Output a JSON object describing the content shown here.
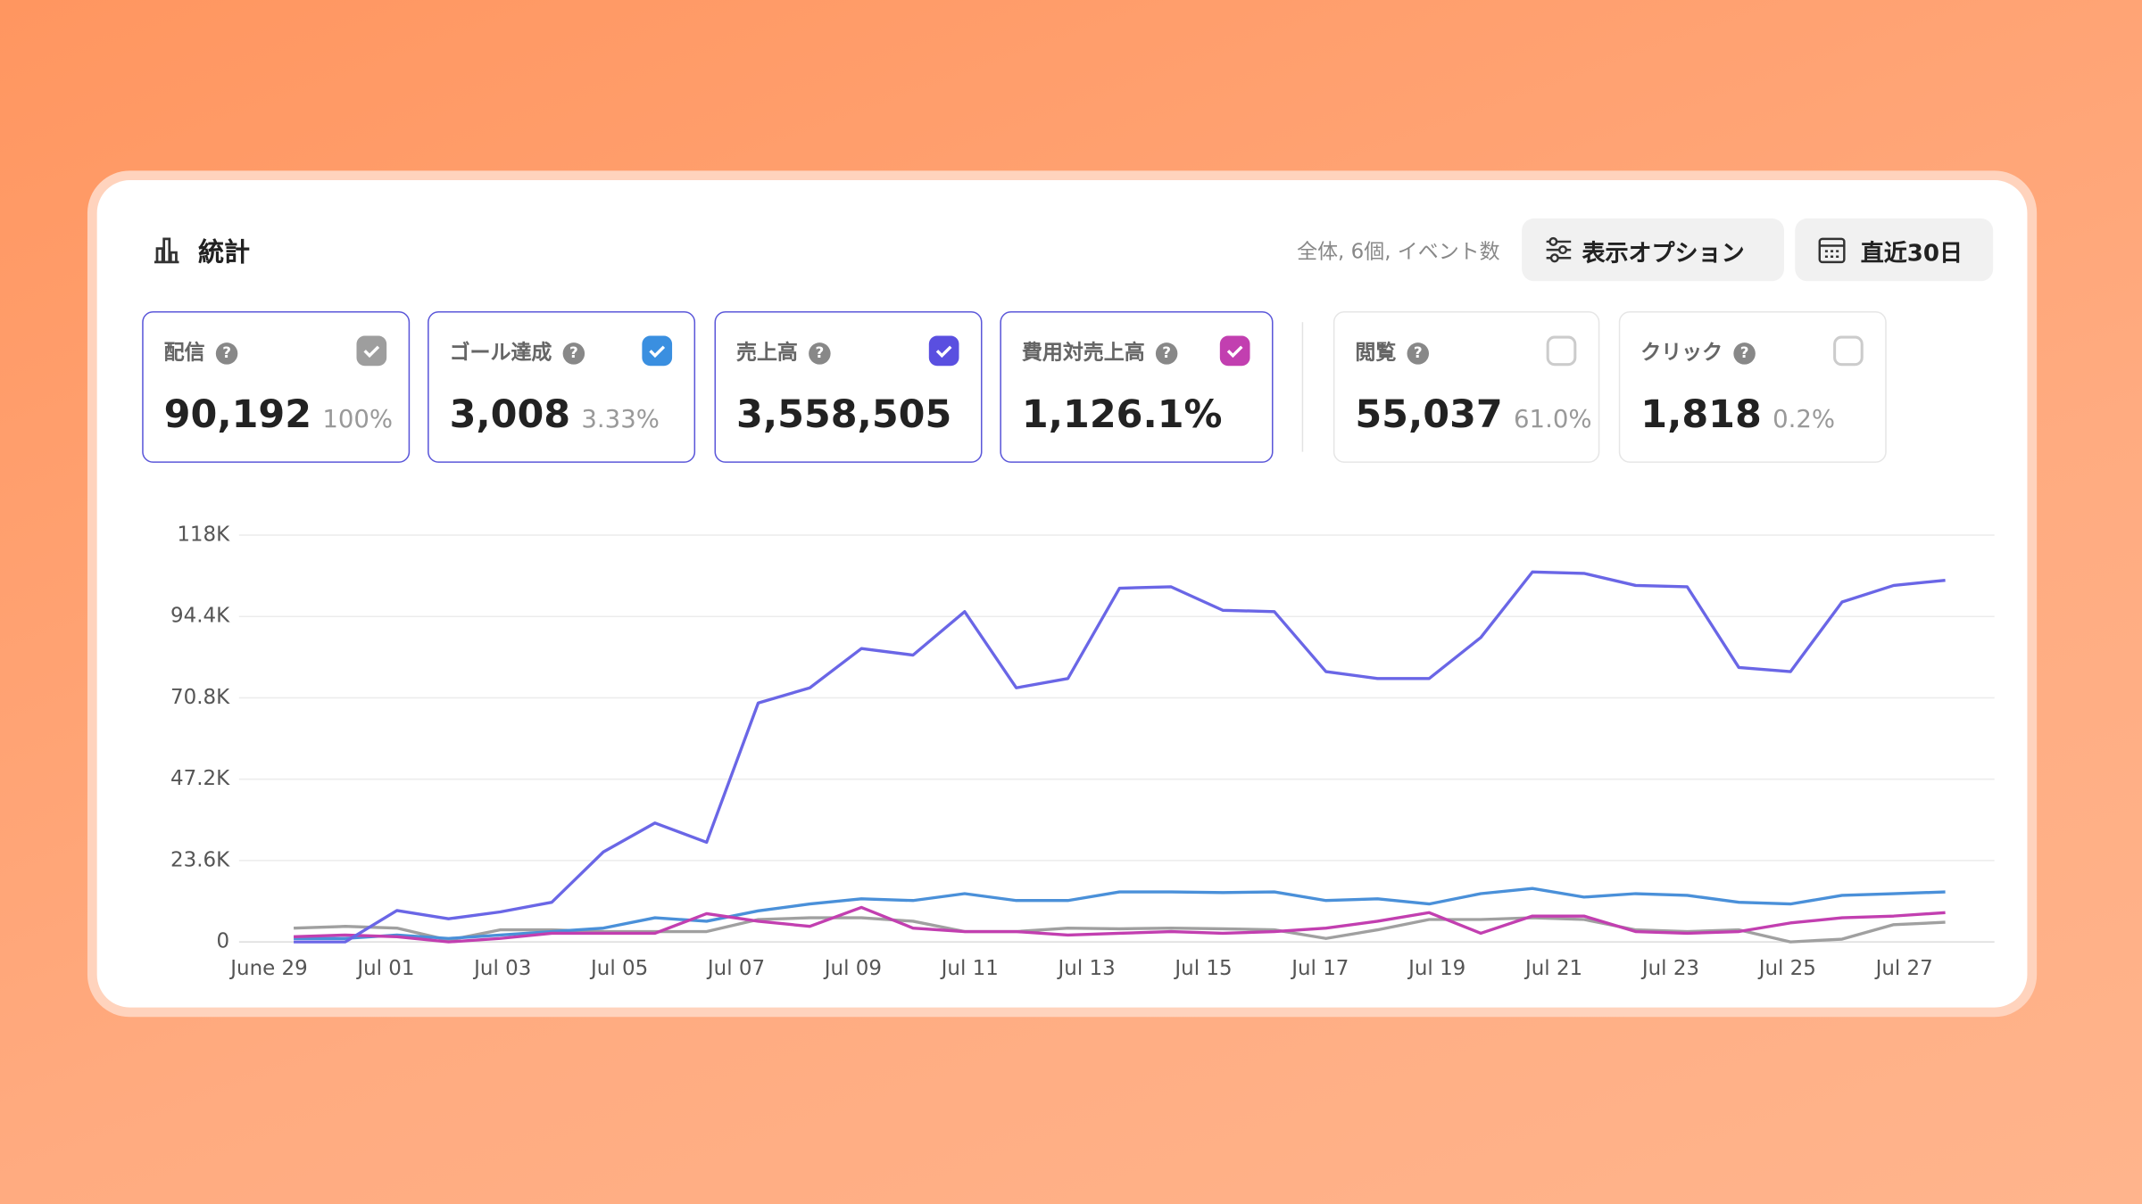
{
  "header": {
    "title": "統計",
    "meta": "全体, 6個, イベント数",
    "options_button": "表示オプション",
    "range_button": "直近30日"
  },
  "cards": [
    {
      "title": "配信",
      "value": "90,192",
      "percent": "100%",
      "selected": true,
      "checked": true,
      "color": "#9e9e9e"
    },
    {
      "title": "ゴール達成",
      "value": "3,008",
      "percent": "3.33%",
      "selected": true,
      "checked": true,
      "color": "#3a8fe0"
    },
    {
      "title": "売上高",
      "value": "3,558,505",
      "selected": true,
      "checked": true,
      "color": "#5a4fe0"
    },
    {
      "title": "費用対売上高",
      "value": "1,126.1%",
      "selected": true,
      "checked": true,
      "color": "#c23fb0"
    },
    {
      "title": "閲覧",
      "value": "55,037",
      "percent": "61.0%",
      "selected": false,
      "checked": false,
      "color": "#cccccc"
    },
    {
      "title": "クリック",
      "value": "1,818",
      "percent": "0.2%",
      "selected": false,
      "checked": false,
      "color": "#cccccc"
    }
  ],
  "chart_data": {
    "type": "line",
    "x_labels": [
      "June 29",
      "Jul 01",
      "Jul 03",
      "Jul 05",
      "Jul 07",
      "Jul 09",
      "Jul 11",
      "Jul 13",
      "Jul 15",
      "Jul 17",
      "Jul 19",
      "Jul 21",
      "Jul 23",
      "Jul 25",
      "Jul 27"
    ],
    "ylim": [
      0,
      118000
    ],
    "yticks": [
      0,
      {
        "value": 23600,
        "label": "23.6K"
      },
      {
        "value": 47200,
        "label": "47.2K"
      },
      {
        "value": 70800,
        "label": "70.8K"
      },
      {
        "value": 94400,
        "label": "94.4K"
      },
      {
        "value": 118000,
        "label": "118K"
      }
    ],
    "grid": true,
    "series": [
      {
        "color": "#a0a0a0",
        "values": [
          4000,
          4500,
          4000,
          500,
          3500,
          3500,
          3000,
          3000,
          3000,
          6500,
          7000,
          7000,
          6000,
          3000,
          3000,
          4000,
          3800,
          4000,
          3800,
          3500,
          1000,
          3500,
          6500,
          6500,
          7000,
          6500,
          3500,
          3000,
          3500,
          0,
          800,
          5000,
          5700
        ]
      },
      {
        "color": "#4a90d9",
        "values": [
          1000,
          1000,
          2000,
          1000,
          2000,
          3000,
          4000,
          7000,
          6000,
          9000,
          11000,
          12500,
          12000,
          14000,
          12000,
          12000,
          14500,
          14500,
          14300,
          14500,
          12000,
          12500,
          11000,
          14000,
          15500,
          13000,
          14000,
          13500,
          11500,
          11000,
          13500,
          14000,
          14500
        ]
      },
      {
        "color": "#c23fb0",
        "values": [
          1500,
          2000,
          1500,
          0,
          1000,
          2500,
          2500,
          2500,
          8200,
          6000,
          4500,
          10000,
          4000,
          3000,
          3000,
          2000,
          2500,
          3000,
          2500,
          3000,
          4000,
          6000,
          8500,
          2500,
          7500,
          7500,
          3000,
          2500,
          3000,
          5500,
          7000,
          7500,
          8500
        ]
      },
      {
        "color": "#6a66e6",
        "values": [
          0,
          0,
          9100,
          6700,
          8700,
          11500,
          26100,
          34500,
          28900,
          69300,
          73700,
          85100,
          83200,
          95800,
          73700,
          76400,
          102600,
          103000,
          96200,
          95800,
          78400,
          76400,
          76400,
          88300,
          107300,
          106900,
          103400,
          103000,
          79600,
          78400,
          98600,
          103400,
          104900
        ]
      }
    ]
  }
}
